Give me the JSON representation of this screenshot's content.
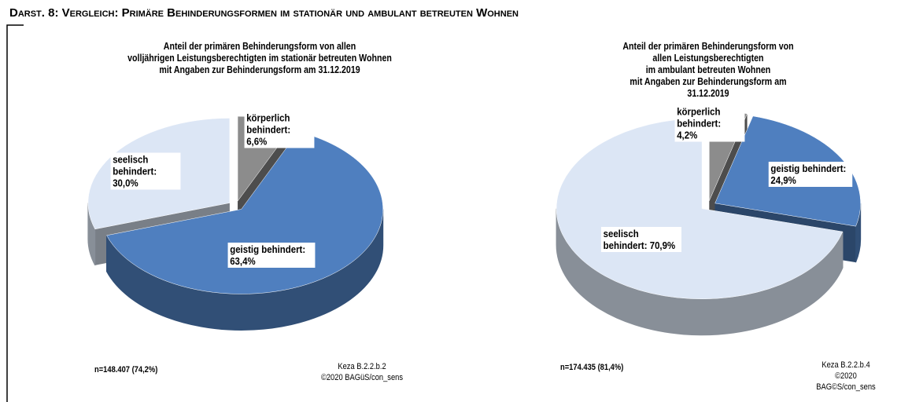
{
  "title": "Darst. 8: Vergleich: Primäre Behinderungsformen im stationär und ambulant betreuten Wohnen",
  "chart_data": [
    {
      "type": "pie3d",
      "title": "Anteil der primären Behinderungsform von allen\nvolljährigen Leistungsberechtigten im stationär betreuten Wohnen\nmit Angaben zur Behinderungsform am 31.12.2019",
      "values": [
        6.6,
        63.4,
        30.0
      ],
      "value_labels": [
        "körperlich behindert: 6,6%",
        "geistig behindert: 63,4%",
        "seelisch behindert: 30,0%"
      ],
      "colors": [
        "#8c8c8c",
        "#4f7fbf",
        "#dce6f5"
      ],
      "note": "n=148.407 (74,2%)",
      "source": [
        "Keza B.2.2.b.2",
        "©2020 BAGüS/con_sens"
      ]
    },
    {
      "type": "pie3d",
      "title": "Anteil der primären Behinderungsform von allen Leistungsberechtigten\nim ambulant betreuten Wohnen\nmit Angaben zur Behinderungsform am 31.12.2019",
      "values": [
        4.2,
        24.9,
        70.9
      ],
      "value_labels": [
        "körperlich behindert: 4,2%",
        "geistig behindert: 24,9%",
        "seelisch behindert: 70,9%"
      ],
      "colors": [
        "#8c8c8c",
        "#4f7fbf",
        "#dce6f5"
      ],
      "note": "n=174.435 (81,4%)",
      "source": [
        "Keza B.2.2.b.4",
        "©2020 BAG©S/con_sens"
      ]
    }
  ]
}
